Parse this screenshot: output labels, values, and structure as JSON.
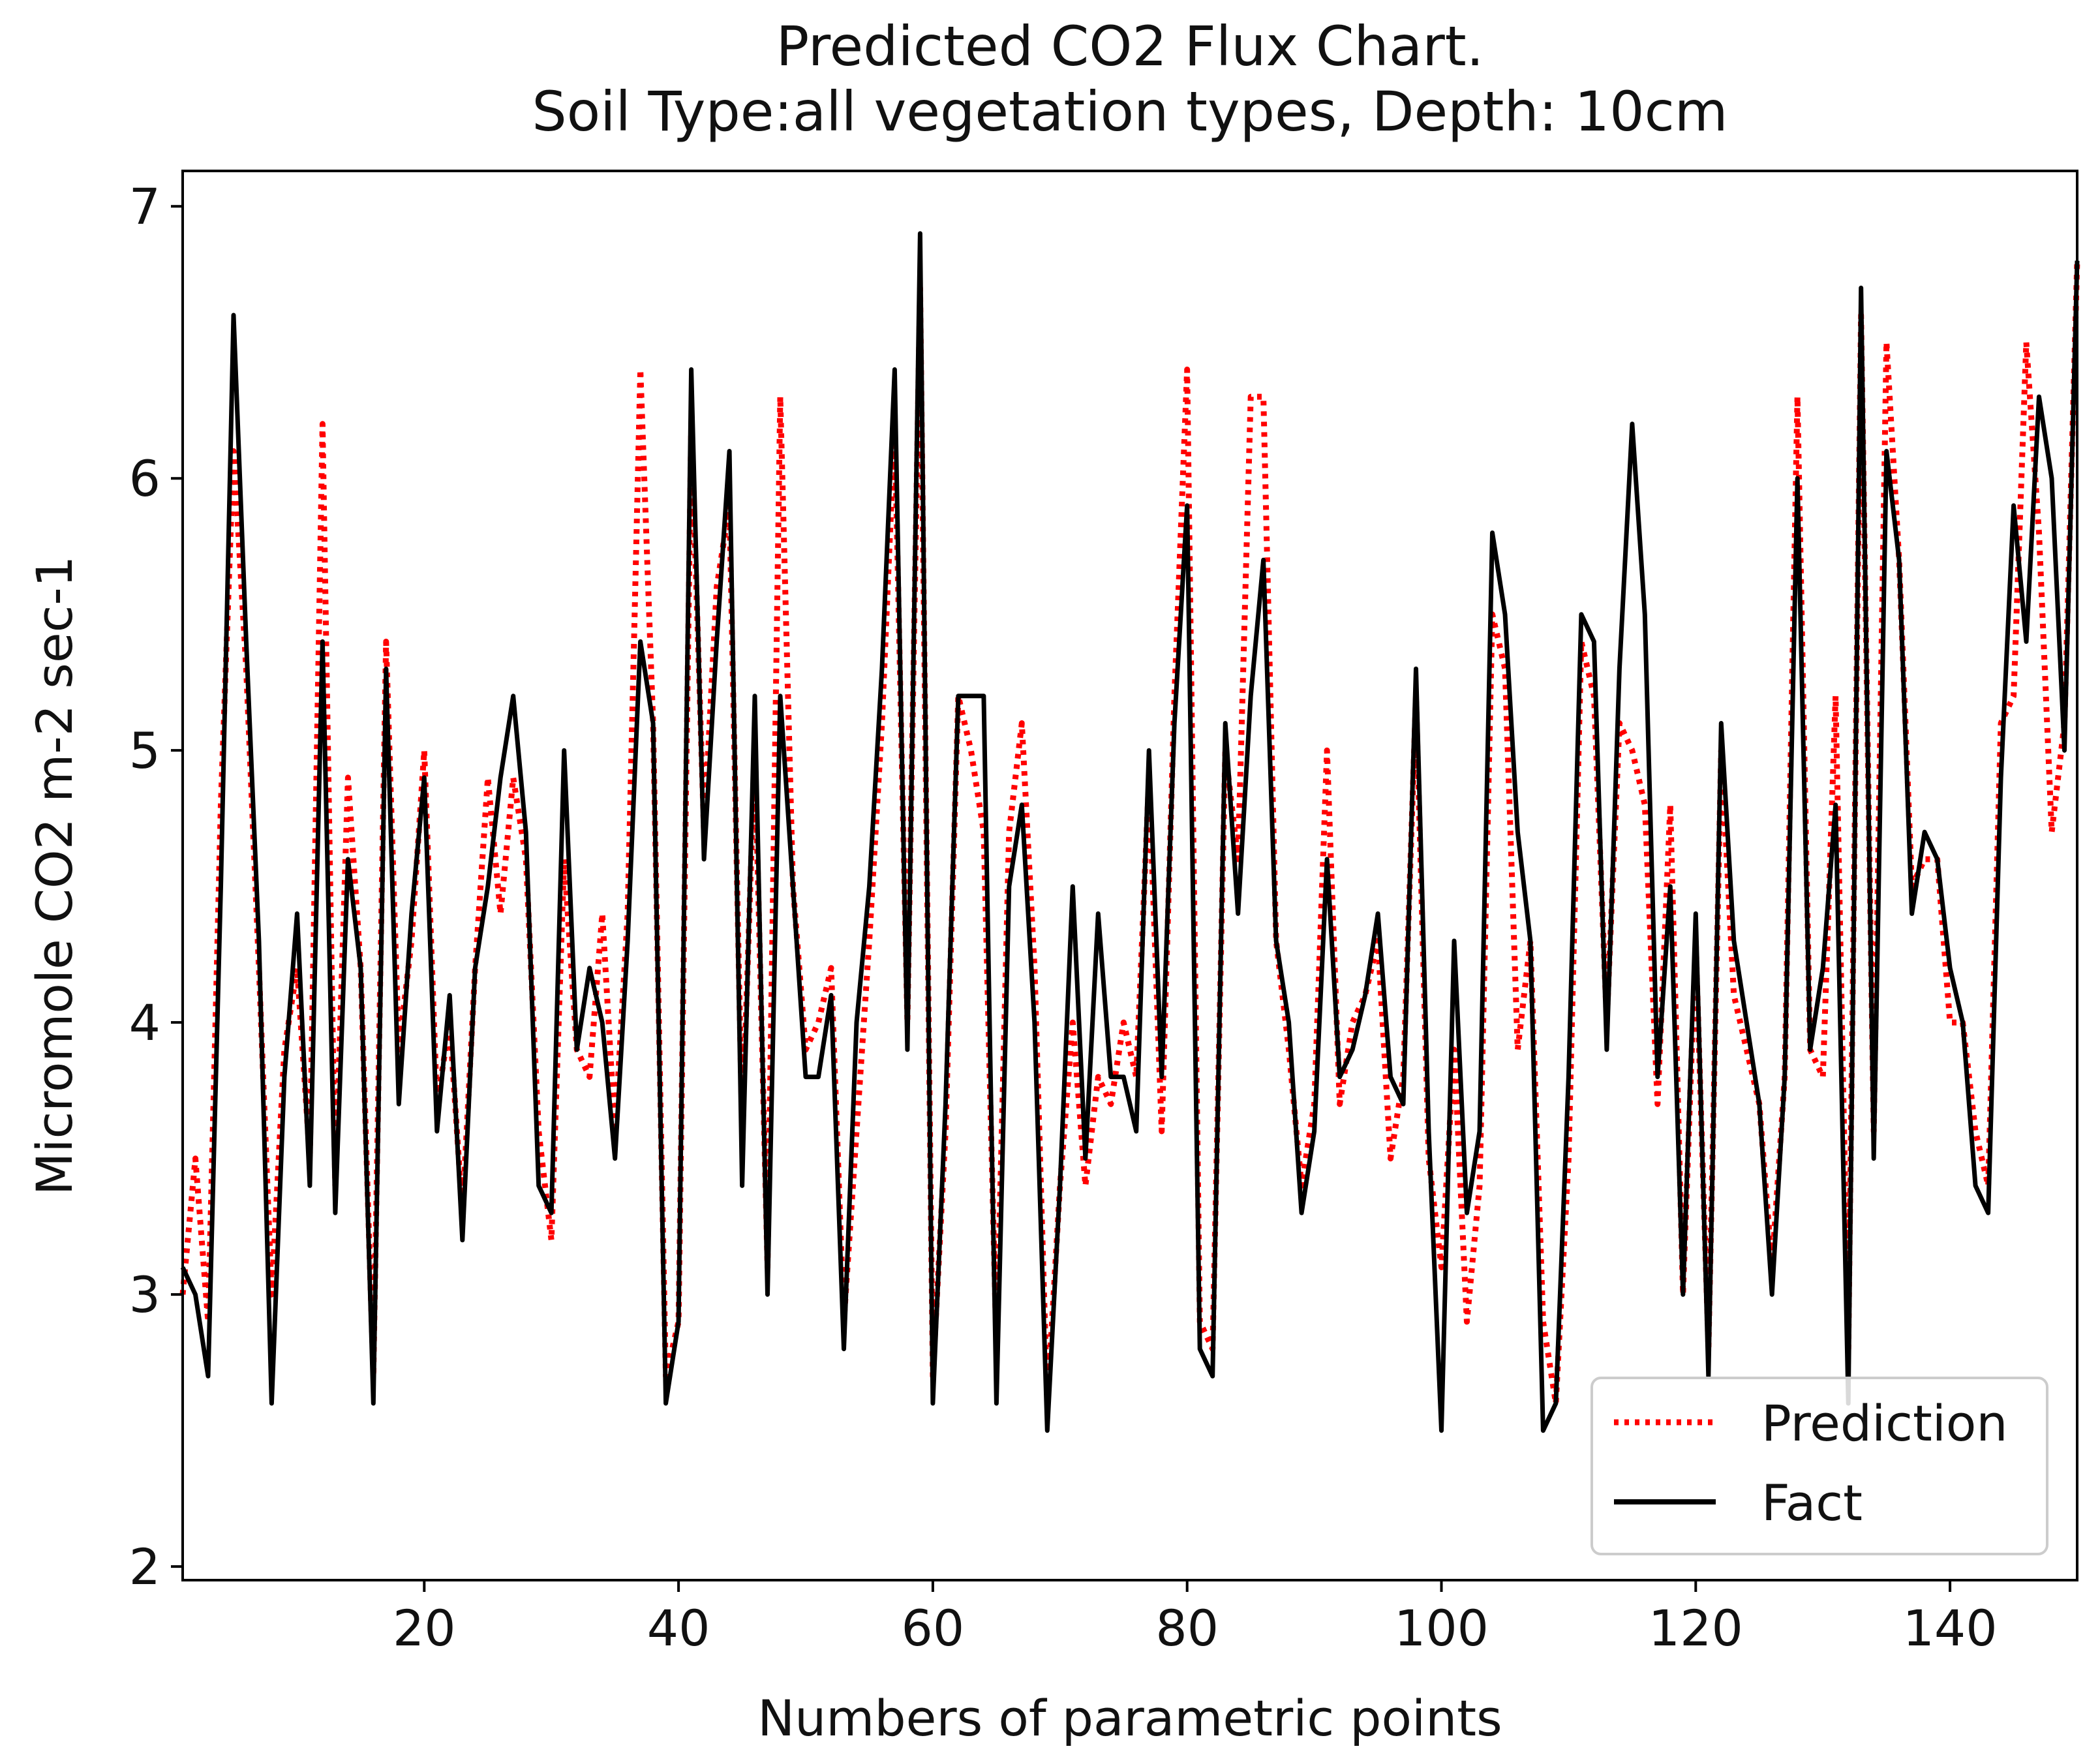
{
  "colors": {
    "prediction": "#ff0000",
    "fact": "#000000",
    "axis": "#000000",
    "legend_border": "#cccccc"
  },
  "chart_data": {
    "type": "line",
    "title": "Predicted CO2 Flux Chart.",
    "subtitle": "Soil Type:all vegetation types, Depth: 10cm",
    "xlabel": "Numbers of parametric points",
    "ylabel": "Micromole CO2 m-2 sec-1",
    "xlim": [
      1,
      150
    ],
    "ylim": [
      1.95,
      7.13
    ],
    "xticks": [
      20,
      40,
      60,
      80,
      100,
      120,
      140
    ],
    "yticks": [
      2,
      3,
      4,
      5,
      6,
      7
    ],
    "legend_position": "lower-right",
    "grid": false,
    "series": [
      {
        "name": "Prediction",
        "style": "dotted",
        "values": [
          3.0,
          3.5,
          2.9,
          4.8,
          6.1,
          5.3,
          4.2,
          3.0,
          3.9,
          4.2,
          3.5,
          6.2,
          3.4,
          4.9,
          4.2,
          2.7,
          5.4,
          3.9,
          4.3,
          5.0,
          3.7,
          4.0,
          3.3,
          4.2,
          4.9,
          4.4,
          4.9,
          4.6,
          3.6,
          3.2,
          4.6,
          3.9,
          3.8,
          4.4,
          3.6,
          4.4,
          6.4,
          5.1,
          2.7,
          2.9,
          6.2,
          4.7,
          5.6,
          5.9,
          3.6,
          5.0,
          3.1,
          6.3,
          4.5,
          3.9,
          4.0,
          4.2,
          2.9,
          3.6,
          4.3,
          5.1,
          6.2,
          4.0,
          6.7,
          2.7,
          3.6,
          5.2,
          5.0,
          4.7,
          2.8,
          4.7,
          5.1,
          4.2,
          2.6,
          3.4,
          4.0,
          3.4,
          3.8,
          3.7,
          4.0,
          3.8,
          4.9,
          3.6,
          5.2,
          6.4,
          2.9,
          2.8,
          5.0,
          4.6,
          6.3,
          6.3,
          4.3,
          3.9,
          3.4,
          3.7,
          5.0,
          3.7,
          4.0,
          4.1,
          4.3,
          3.5,
          3.8,
          5.2,
          3.5,
          3.1,
          3.9,
          2.9,
          3.4,
          5.5,
          5.3,
          3.9,
          4.3,
          2.9,
          2.6,
          3.5,
          5.4,
          5.2,
          4.0,
          5.1,
          5.0,
          4.8,
          3.7,
          4.8,
          3.0,
          4.3,
          2.8,
          5.0,
          4.1,
          3.9,
          3.7,
          3.1,
          3.8,
          6.3,
          3.9,
          3.8,
          5.2,
          2.8,
          6.6,
          3.6,
          6.5,
          5.7,
          4.5,
          4.6,
          4.6,
          4.0,
          4.0,
          3.6,
          3.4,
          5.1,
          5.2,
          6.5,
          5.8,
          4.7,
          5.1,
          6.8
        ]
      },
      {
        "name": "Fact",
        "style": "solid",
        "values": [
          3.1,
          3.0,
          2.7,
          4.5,
          6.6,
          5.4,
          4.3,
          2.6,
          3.8,
          4.4,
          3.4,
          5.4,
          3.3,
          4.6,
          4.2,
          2.6,
          5.3,
          3.7,
          4.4,
          4.9,
          3.6,
          4.1,
          3.2,
          4.2,
          4.5,
          4.9,
          5.2,
          4.7,
          3.4,
          3.3,
          5.0,
          3.9,
          4.2,
          4.0,
          3.5,
          4.3,
          5.4,
          5.1,
          2.6,
          2.9,
          6.4,
          4.6,
          5.4,
          6.1,
          3.4,
          5.2,
          3.0,
          5.2,
          4.5,
          3.8,
          3.8,
          4.1,
          2.8,
          4.0,
          4.5,
          5.3,
          6.4,
          3.9,
          6.9,
          2.6,
          3.7,
          5.2,
          5.2,
          5.2,
          2.6,
          4.5,
          4.8,
          4.0,
          2.5,
          3.4,
          4.5,
          3.5,
          4.4,
          3.8,
          3.8,
          3.6,
          5.0,
          3.8,
          5.1,
          5.9,
          2.8,
          2.7,
          5.1,
          4.4,
          5.2,
          5.7,
          4.3,
          4.0,
          3.3,
          3.6,
          4.6,
          3.8,
          3.9,
          4.1,
          4.4,
          3.8,
          3.7,
          5.3,
          3.6,
          2.5,
          4.3,
          3.3,
          3.6,
          5.8,
          5.5,
          4.7,
          4.3,
          2.5,
          2.6,
          3.8,
          5.5,
          5.4,
          3.9,
          5.3,
          6.2,
          5.5,
          3.8,
          4.5,
          3.0,
          4.4,
          2.7,
          5.1,
          4.3,
          4.0,
          3.7,
          3.0,
          3.8,
          6.0,
          3.9,
          4.2,
          4.8,
          2.6,
          6.7,
          3.5,
          6.1,
          5.7,
          4.4,
          4.7,
          4.6,
          4.2,
          4.0,
          3.4,
          3.3,
          4.9,
          5.9,
          5.4,
          6.3,
          6.0,
          5.0,
          6.8
        ]
      }
    ]
  }
}
